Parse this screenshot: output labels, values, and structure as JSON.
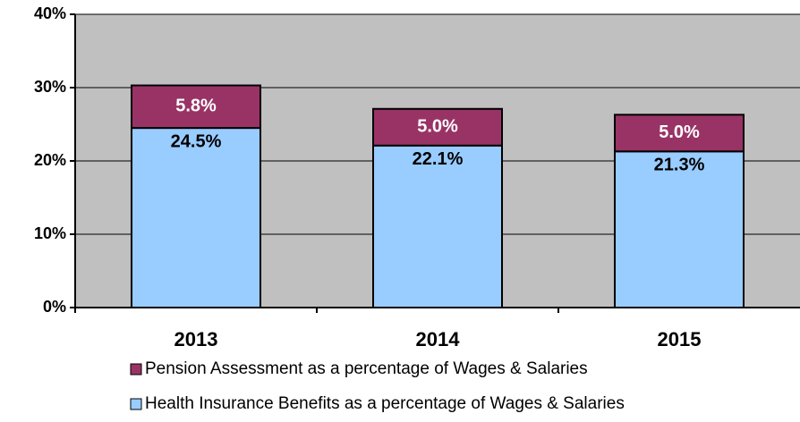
{
  "chart_data": {
    "type": "stacked_bar",
    "categories": [
      "2013",
      "2014",
      "2015"
    ],
    "series": [
      {
        "name": "Health Insurance Benefits as a percentage of Wages & Salaries",
        "color": "#99ccff",
        "values": [
          24.5,
          22.1,
          21.3
        ],
        "value_labels": [
          "24.5%",
          "22.1%",
          "21.3%"
        ]
      },
      {
        "name": "Pension Assessment as a percentage of Wages & Salaries",
        "color": "#993366",
        "values": [
          5.8,
          5.0,
          5.0
        ],
        "value_labels": [
          "5.8%",
          "5.0%",
          "5.0%"
        ]
      }
    ],
    "ylim": [
      0,
      40
    ],
    "yticks": [
      {
        "value": 0,
        "label": "0%"
      },
      {
        "value": 10,
        "label": "10%"
      },
      {
        "value": 20,
        "label": "20%"
      },
      {
        "value": 30,
        "label": "30%"
      },
      {
        "value": 40,
        "label": "40%"
      }
    ],
    "grid": true,
    "plot_background": "#c0c0c0",
    "legend": "bottom"
  }
}
